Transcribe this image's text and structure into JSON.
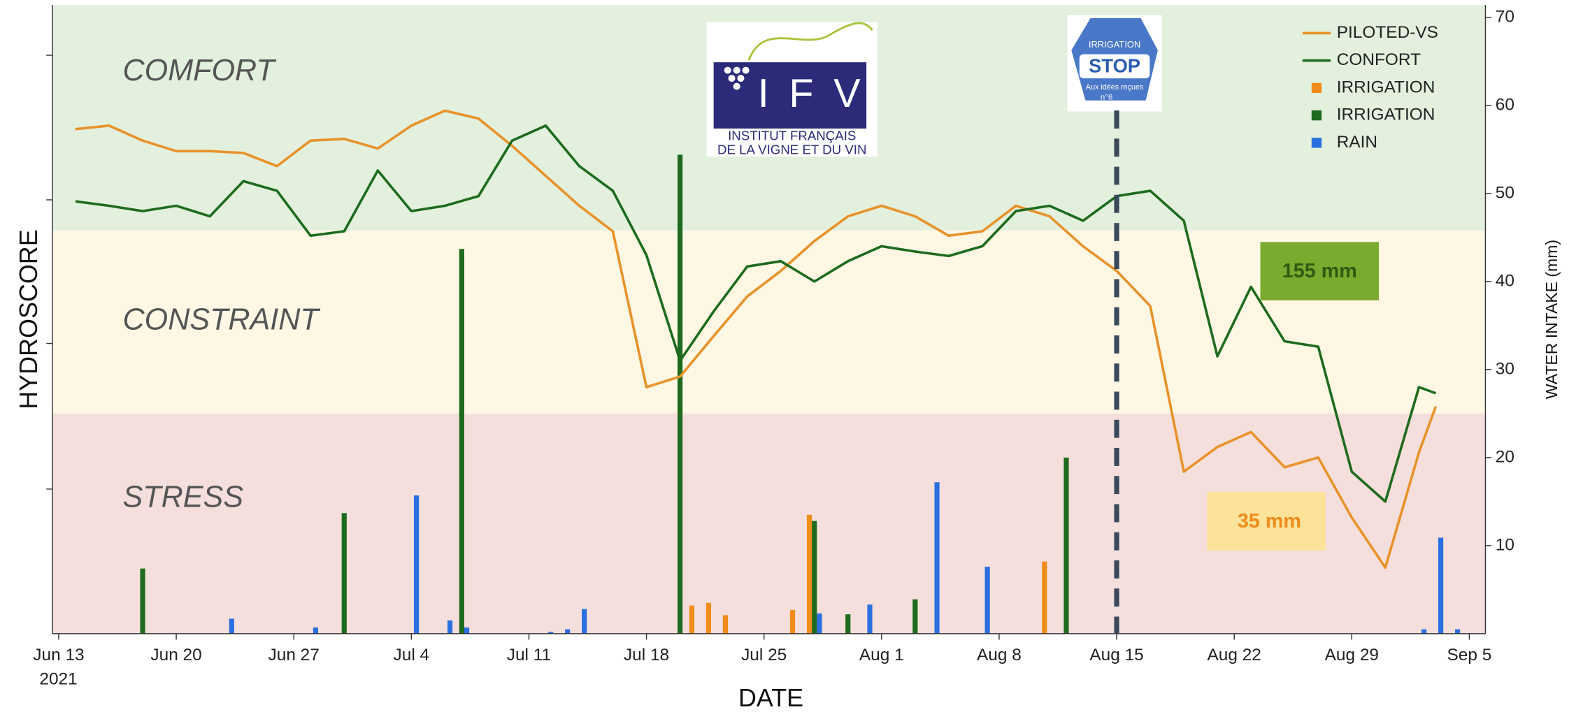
{
  "chart_data": {
    "type": "combo",
    "xlabel": "DATE",
    "ylabel": "HYDROSCORE",
    "y2label": "WATER INTAKE (mm)",
    "xlim": [
      "2021-06-12T15:00",
      "2021-09-05T23:00"
    ],
    "xticks": [
      {
        "value": "2021-06-13",
        "label": "Jun 13"
      },
      {
        "value": "2021-06-20",
        "label": "Jun 20"
      },
      {
        "value": "2021-06-27",
        "label": "Jun 27"
      },
      {
        "value": "2021-07-04",
        "label": "Jul 4"
      },
      {
        "value": "2021-07-11",
        "label": "Jul 11"
      },
      {
        "value": "2021-07-18",
        "label": "Jul 18"
      },
      {
        "value": "2021-07-25",
        "label": "Jul 25"
      },
      {
        "value": "2021-08-01",
        "label": "Aug 1"
      },
      {
        "value": "2021-08-08",
        "label": "Aug 8"
      },
      {
        "value": "2021-08-15",
        "label": "Aug 15"
      },
      {
        "value": "2021-08-22",
        "label": "Aug 22"
      },
      {
        "value": "2021-08-29",
        "label": "Aug 29"
      },
      {
        "value": "2021-09-05",
        "label": "Sep 5"
      }
    ],
    "year_label": "2021",
    "ylim": [
      0,
      71.4
    ],
    "yticks": [
      10,
      20,
      30,
      40,
      50,
      60,
      70
    ],
    "zones": [
      {
        "label": "COMFORT",
        "from": 45.8,
        "to": 71.4,
        "color": "#e2f0dd"
      },
      {
        "label": "CONSTRAINT",
        "from": 25,
        "to": 45.8,
        "color": "#fdf7e4"
      },
      {
        "label": "STRESS",
        "from": 0,
        "to": 25,
        "color": "#f5dfdc"
      }
    ],
    "vline": "2021-08-15",
    "legend": "upper right",
    "series": [
      {
        "name": "PILOTED-VS",
        "type": "line",
        "color": "#e8922a",
        "x": [
          "2021-06-14",
          "2021-06-16",
          "2021-06-18",
          "2021-06-20",
          "2021-06-22",
          "2021-06-24",
          "2021-06-26",
          "2021-06-28",
          "2021-06-30",
          "2021-07-02",
          "2021-07-04",
          "2021-07-06",
          "2021-07-08",
          "2021-07-10",
          "2021-07-12",
          "2021-07-14",
          "2021-07-16",
          "2021-07-18",
          "2021-07-20",
          "2021-07-22",
          "2021-07-24",
          "2021-07-26",
          "2021-07-28",
          "2021-07-30",
          "2021-08-01",
          "2021-08-03",
          "2021-08-05",
          "2021-08-07",
          "2021-08-09",
          "2021-08-11",
          "2021-08-13",
          "2021-08-15",
          "2021-08-17",
          "2021-08-19",
          "2021-08-21",
          "2021-08-23",
          "2021-08-25",
          "2021-08-27",
          "2021-08-29",
          "2021-08-31",
          "2021-09-02",
          "2021-09-03"
        ],
        "values": [
          57.3,
          57.7,
          56,
          54.8,
          54.8,
          54.6,
          53.1,
          56,
          56.2,
          55.1,
          57.7,
          59.4,
          58.5,
          55.4,
          52,
          48.6,
          45.7,
          28,
          29.2,
          33.8,
          38.3,
          41.2,
          44.6,
          47.4,
          48.6,
          47.4,
          45.2,
          45.7,
          48.6,
          47.4,
          44,
          41.2,
          37.2,
          18.4,
          21.2,
          22.9,
          18.9,
          20,
          13.2,
          7.5,
          20.6,
          25.8
        ]
      },
      {
        "name": "CONFORT",
        "type": "line",
        "color": "#1e6b1e",
        "x": [
          "2021-06-14",
          "2021-06-16",
          "2021-06-18",
          "2021-06-20",
          "2021-06-22",
          "2021-06-24",
          "2021-06-26",
          "2021-06-28",
          "2021-06-30",
          "2021-07-02",
          "2021-07-04",
          "2021-07-06",
          "2021-07-08",
          "2021-07-10",
          "2021-07-12",
          "2021-07-14",
          "2021-07-16",
          "2021-07-18",
          "2021-07-20",
          "2021-07-22",
          "2021-07-24",
          "2021-07-26",
          "2021-07-28",
          "2021-07-30",
          "2021-08-01",
          "2021-08-03",
          "2021-08-05",
          "2021-08-07",
          "2021-08-09",
          "2021-08-11",
          "2021-08-13",
          "2021-08-15",
          "2021-08-17",
          "2021-08-19",
          "2021-08-21",
          "2021-08-23",
          "2021-08-25",
          "2021-08-27",
          "2021-08-29",
          "2021-08-31",
          "2021-09-02",
          "2021-09-03"
        ],
        "values": [
          49.1,
          48.6,
          48,
          48.6,
          47.4,
          51.4,
          50.3,
          45.2,
          45.7,
          52.6,
          48,
          48.6,
          49.7,
          56,
          57.7,
          53.1,
          50.3,
          43,
          31,
          36.6,
          41.7,
          42.3,
          40,
          42.3,
          44,
          43.4,
          42.9,
          44,
          48,
          48.6,
          46.9,
          49.7,
          50.3,
          46.9,
          31.5,
          39.4,
          33.2,
          32.6,
          18.4,
          15,
          28,
          27.3
        ]
      },
      {
        "name": "IRRIGATION",
        "type": "bar",
        "color": "#f08c1a",
        "x": [
          "2021-07-21",
          "2021-07-22",
          "2021-07-23",
          "2021-07-27",
          "2021-07-28",
          "2021-08-11"
        ],
        "values": [
          3.2,
          3.5,
          2.1,
          2.7,
          13.5,
          8.2
        ]
      },
      {
        "name": "IRRIGATION",
        "type": "bar",
        "color": "#1e6b1e",
        "x": [
          "2021-06-18",
          "2021-06-30",
          "2021-07-07",
          "2021-07-20",
          "2021-07-28",
          "2021-07-30",
          "2021-08-03",
          "2021-08-12"
        ],
        "values": [
          7.4,
          13.7,
          43.7,
          54.4,
          12.8,
          2.2,
          3.9,
          20
        ]
      },
      {
        "name": "RAIN",
        "type": "bar",
        "color": "#2a6fe0",
        "x": [
          "2021-06-23",
          "2021-06-28",
          "2021-07-04",
          "2021-07-06",
          "2021-07-07",
          "2021-07-12",
          "2021-07-13",
          "2021-07-14",
          "2021-07-28",
          "2021-07-31",
          "2021-08-04",
          "2021-08-07",
          "2021-09-02",
          "2021-09-03",
          "2021-09-04"
        ],
        "values": [
          1.7,
          0.7,
          15.7,
          1.5,
          0.7,
          0.2,
          0.5,
          2.8,
          2.3,
          3.3,
          17.2,
          7.6,
          0.5,
          10.9,
          0.5
        ]
      }
    ],
    "annotations": [
      "155 mm",
      "35 mm"
    ],
    "logo_ifv": {
      "mark": "IFV",
      "line1": "INSTITUT FRANÇAIS",
      "line2": "DE LA VIGNE ET DU VIN"
    },
    "badge": {
      "top": "IRRIGATION",
      "word": "STOP",
      "sub": "Aux idées reçues",
      "num": "n°6"
    }
  }
}
